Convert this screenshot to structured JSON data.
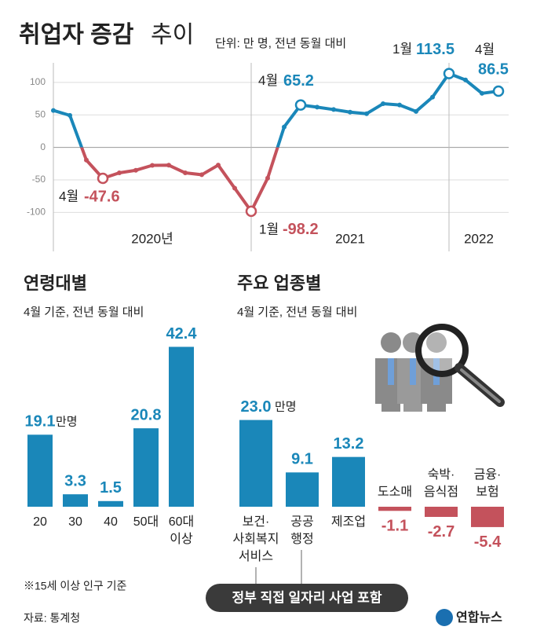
{
  "header": {
    "title_bold": "취업자 증감",
    "title_rest": "추이",
    "subtitle": "단위: 만 명, 전년 동월 대비"
  },
  "chart_data": [
    {
      "type": "line",
      "ylim": [
        -160,
        130
      ],
      "yticks": [
        100,
        50,
        0,
        -50,
        -100
      ],
      "grid": true,
      "color_positive": "#1a87b9",
      "color_negative": "#c4525c",
      "year_labels": [
        "2020년",
        "2021",
        "2022"
      ],
      "values": [
        56.8,
        49.2,
        -19.5,
        -47.6,
        -39.2,
        -35.2,
        -27.7,
        -27.4,
        -39.2,
        -42.1,
        -27.3,
        -62.8,
        -98.2,
        -47.3,
        31.4,
        65.2,
        61.9,
        58.2,
        54.2,
        51.8,
        67.1,
        65.2,
        55.3,
        77.3,
        113.5,
        103.7,
        83.1,
        86.5
      ],
      "annotations": [
        {
          "index": 3,
          "text": "4월"
        },
        {
          "index": 12,
          "text": "1월"
        },
        {
          "index": 15,
          "text": "4월"
        },
        {
          "index": 24,
          "text": "1월"
        },
        {
          "index": 27,
          "text": "4월"
        }
      ]
    },
    {
      "type": "bar",
      "title": "연령대별",
      "subtitle": "4월 기준, 전년 동월 대비",
      "color_positive": "#1a87b9",
      "color_negative": "#c4525c",
      "unit": "만명",
      "categories": [
        [
          "20"
        ],
        [
          "30"
        ],
        [
          "40"
        ],
        [
          "50대"
        ],
        [
          "60대",
          "이상"
        ]
      ],
      "values": [
        19.1,
        3.3,
        1.5,
        20.8,
        42.4
      ]
    },
    {
      "type": "bar",
      "title": "주요 업종별",
      "subtitle": "4월 기준, 전년 동월 대비",
      "color_positive": "#1a87b9",
      "color_negative": "#c4525c",
      "unit": "만명",
      "categories": [
        [
          "보건·",
          "사회복지",
          "서비스"
        ],
        [
          "공공",
          "행정"
        ],
        [
          "제조업"
        ],
        [
          "도소매"
        ],
        [
          "숙박·",
          "음식점"
        ],
        [
          "금융·",
          "보험"
        ]
      ],
      "values": [
        23.0,
        9.1,
        13.2,
        -1.1,
        -2.7,
        -5.4
      ],
      "value_labels": [
        "23.0",
        "9.1",
        "13.2",
        "-1.1",
        "-2.7",
        "-5.4"
      ],
      "badge": "정부 직접 일자리 사업 포함"
    }
  ],
  "footer": {
    "note": "※15세 이상 인구 기준",
    "source": "자료: 통계청",
    "logo": "연합뉴스"
  }
}
